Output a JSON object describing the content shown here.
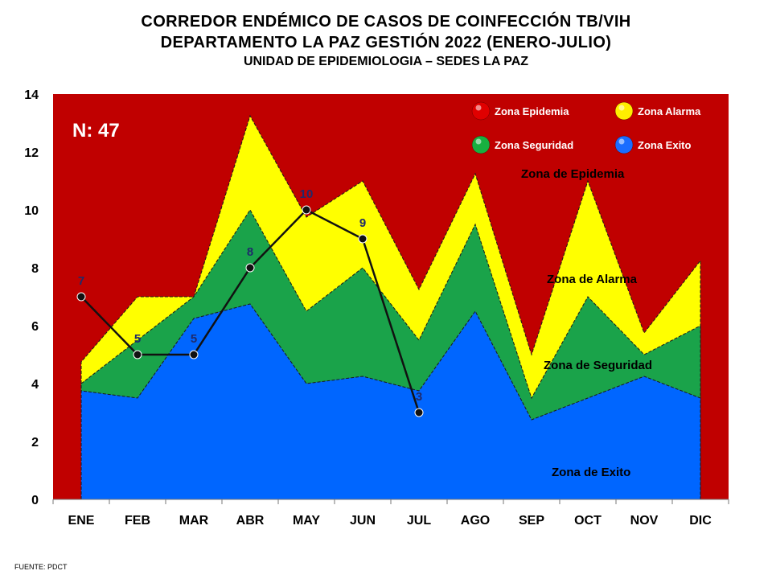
{
  "title": {
    "line1": "CORREDOR ENDÉMICO DE CASOS DE COINFECCIÓN TB/VIH",
    "line2": "DEPARTAMENTO  LA PAZ GESTIÓN 2022 (ENERO-JULIO)",
    "line3": "UNIDAD DE EPIDEMIOLOGIA – SEDES LA PAZ"
  },
  "footer": "FUENTE:   PDCT",
  "chart_data": {
    "type": "area",
    "categories": [
      "ENE",
      "FEB",
      "MAR",
      "ABR",
      "MAY",
      "JUN",
      "JUL",
      "AGO",
      "SEP",
      "OCT",
      "NOV",
      "DIC"
    ],
    "ylim": [
      0,
      14
    ],
    "yticks": [
      "0",
      "2",
      "4",
      "6",
      "8",
      "10",
      "12",
      "14"
    ],
    "n_label": "N: 47",
    "series": [
      {
        "name": "Zona Exito",
        "color": "#0066ff",
        "values": [
          3.75,
          3.5,
          6.25,
          6.75,
          4.0,
          4.25,
          3.75,
          6.5,
          2.75,
          3.5,
          4.25,
          3.5
        ]
      },
      {
        "name": "Zona Seguridad",
        "color": "#1aa34a",
        "values": [
          4.0,
          5.5,
          7.0,
          10.0,
          6.5,
          8.0,
          5.5,
          9.5,
          3.5,
          7.0,
          5.0,
          6.0
        ]
      },
      {
        "name": "Zona Alarma",
        "color": "#ffff00",
        "values": [
          4.75,
          7.0,
          7.0,
          13.25,
          9.75,
          11.0,
          7.25,
          11.25,
          5.0,
          11.0,
          5.75,
          8.25
        ]
      },
      {
        "name": "Zona Epidemia",
        "color": "#c00000",
        "values": [
          14,
          14,
          14,
          14,
          14,
          14,
          14,
          14,
          14,
          14,
          14,
          14
        ]
      }
    ],
    "cases": {
      "values": [
        7,
        5,
        5,
        8,
        10,
        9,
        3
      ],
      "labels": [
        "7",
        "5",
        "5",
        "8",
        "10",
        "9",
        "3"
      ]
    },
    "legend": {
      "position": "top-right",
      "items": [
        {
          "label": "Zona Epidemia",
          "color": "#e00000"
        },
        {
          "label": "Zona Alarma",
          "color": "#ffee00"
        },
        {
          "label": "Zona Seguridad",
          "color": "#18b040"
        },
        {
          "label": "Zona Exito",
          "color": "#1a6cff"
        }
      ]
    },
    "zone_labels": {
      "epidemia": "Zona de Epidemia",
      "alarma": "Zona de Alarma",
      "seguridad": "Zona de Seguridad",
      "exito": "Zona de Exito"
    }
  }
}
